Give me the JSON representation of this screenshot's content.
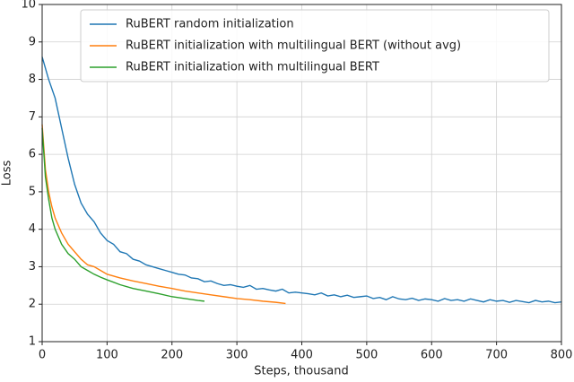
{
  "chart_data": {
    "type": "line",
    "xlabel": "Steps, thousand",
    "ylabel": "Loss",
    "xlim": [
      0,
      800
    ],
    "xticks": [
      0,
      100,
      200,
      300,
      400,
      500,
      600,
      700,
      800
    ],
    "ylim": [
      1,
      10
    ],
    "yticks": [
      1,
      2,
      3,
      4,
      5,
      6,
      7,
      8,
      9,
      10
    ],
    "grid": true,
    "legend": "upper right",
    "series": [
      {
        "name": "RuBERT random initialization",
        "color": "#1f77b4",
        "x": [
          0,
          10,
          20,
          30,
          40,
          50,
          60,
          70,
          80,
          90,
          100,
          110,
          120,
          130,
          140,
          150,
          160,
          170,
          180,
          190,
          200,
          210,
          220,
          230,
          240,
          250,
          260,
          270,
          280,
          290,
          300,
          310,
          320,
          330,
          340,
          350,
          360,
          370,
          380,
          390,
          400,
          410,
          420,
          430,
          440,
          450,
          460,
          470,
          480,
          490,
          500,
          510,
          520,
          530,
          540,
          550,
          560,
          570,
          580,
          590,
          600,
          610,
          620,
          630,
          640,
          650,
          660,
          670,
          680,
          690,
          700,
          710,
          720,
          730,
          740,
          750,
          760,
          770,
          780,
          790,
          800
        ],
        "values": [
          8.6,
          8.0,
          7.5,
          6.7,
          5.9,
          5.2,
          4.7,
          4.4,
          4.2,
          3.9,
          3.7,
          3.6,
          3.4,
          3.35,
          3.2,
          3.15,
          3.05,
          3.0,
          2.95,
          2.9,
          2.85,
          2.8,
          2.78,
          2.7,
          2.68,
          2.6,
          2.62,
          2.55,
          2.5,
          2.52,
          2.48,
          2.45,
          2.5,
          2.4,
          2.42,
          2.38,
          2.35,
          2.4,
          2.3,
          2.32,
          2.3,
          2.28,
          2.25,
          2.3,
          2.22,
          2.25,
          2.2,
          2.24,
          2.18,
          2.2,
          2.22,
          2.15,
          2.18,
          2.12,
          2.2,
          2.14,
          2.12,
          2.16,
          2.1,
          2.14,
          2.12,
          2.08,
          2.15,
          2.1,
          2.12,
          2.08,
          2.14,
          2.1,
          2.06,
          2.12,
          2.08,
          2.1,
          2.05,
          2.1,
          2.07,
          2.04,
          2.1,
          2.06,
          2.08,
          2.04,
          2.06
        ]
      },
      {
        "name": "RuBERT initialization with multilingual BERT (without avg)",
        "color": "#ff7f0e",
        "x": [
          0,
          5,
          10,
          15,
          20,
          30,
          40,
          50,
          60,
          70,
          80,
          90,
          100,
          120,
          140,
          160,
          180,
          200,
          220,
          240,
          260,
          280,
          300,
          320,
          340,
          360,
          375
        ],
        "values": [
          6.8,
          5.6,
          5.0,
          4.6,
          4.3,
          3.9,
          3.6,
          3.4,
          3.2,
          3.05,
          3.0,
          2.9,
          2.8,
          2.7,
          2.62,
          2.55,
          2.48,
          2.42,
          2.35,
          2.3,
          2.25,
          2.2,
          2.15,
          2.12,
          2.08,
          2.05,
          2.02
        ]
      },
      {
        "name": "RuBERT initialization with multilingual BERT",
        "color": "#2ca02c",
        "x": [
          0,
          5,
          10,
          15,
          20,
          30,
          40,
          50,
          60,
          70,
          80,
          90,
          100,
          120,
          140,
          160,
          180,
          200,
          220,
          240,
          250
        ],
        "values": [
          6.7,
          5.4,
          4.8,
          4.3,
          4.0,
          3.6,
          3.35,
          3.2,
          3.0,
          2.9,
          2.8,
          2.72,
          2.65,
          2.52,
          2.42,
          2.35,
          2.28,
          2.2,
          2.15,
          2.1,
          2.08
        ]
      }
    ]
  }
}
